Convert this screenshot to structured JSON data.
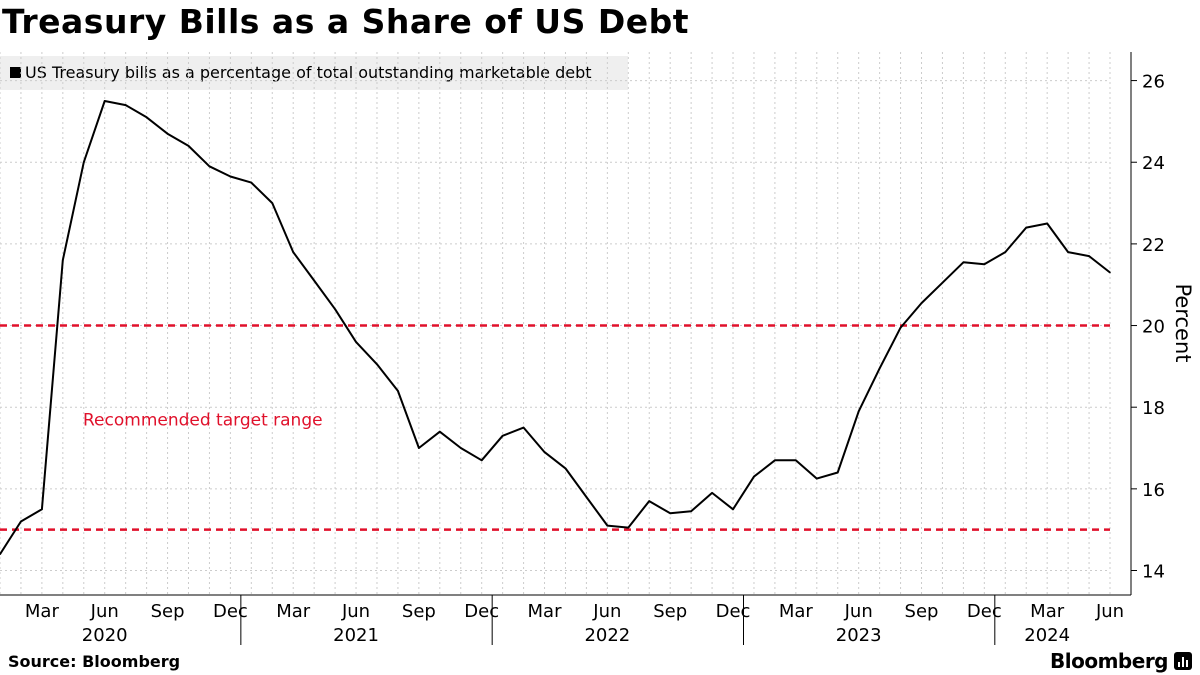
{
  "title": "Treasury Bills as a Share of US Debt",
  "legend": {
    "label": "US Treasury bills as a percentage of total outstanding marketable debt"
  },
  "source": "Source: Bloomberg",
  "brand": "Bloomberg",
  "colors": {
    "line": "#000000",
    "target": "#e0112b",
    "legend_bg": "#efefef",
    "grid": "#cccccc"
  },
  "chart_data": {
    "type": "line",
    "title": "Treasury Bills as a Share of US Debt",
    "ylabel": "Percent",
    "xlabel": "",
    "ylim": [
      13.4,
      26.7
    ],
    "yticks": [
      14,
      16,
      18,
      20,
      22,
      24,
      26
    ],
    "x_start": "2020-01",
    "x_end": "2024-06",
    "x_ticks": [
      {
        "month": "2020-03",
        "label": "Mar"
      },
      {
        "month": "2020-06",
        "label": "Jun"
      },
      {
        "month": "2020-09",
        "label": "Sep"
      },
      {
        "month": "2020-12",
        "label": "Dec"
      },
      {
        "month": "2021-03",
        "label": "Mar"
      },
      {
        "month": "2021-06",
        "label": "Jun"
      },
      {
        "month": "2021-09",
        "label": "Sep"
      },
      {
        "month": "2021-12",
        "label": "Dec"
      },
      {
        "month": "2022-03",
        "label": "Mar"
      },
      {
        "month": "2022-06",
        "label": "Jun"
      },
      {
        "month": "2022-09",
        "label": "Sep"
      },
      {
        "month": "2022-12",
        "label": "Dec"
      },
      {
        "month": "2023-03",
        "label": "Mar"
      },
      {
        "month": "2023-06",
        "label": "Jun"
      },
      {
        "month": "2023-09",
        "label": "Sep"
      },
      {
        "month": "2023-12",
        "label": "Dec"
      },
      {
        "month": "2024-03",
        "label": "Mar"
      },
      {
        "month": "2024-06",
        "label": "Jun"
      }
    ],
    "year_labels": [
      {
        "month": "2020-06",
        "label": "2020"
      },
      {
        "month": "2021-06",
        "label": "2021"
      },
      {
        "month": "2022-06",
        "label": "2022"
      },
      {
        "month": "2023-06",
        "label": "2023"
      },
      {
        "month": "2024-03",
        "label": "2024"
      }
    ],
    "series": [
      {
        "name": "US Treasury bills as a percentage of total outstanding marketable debt",
        "x": [
          "2020-01",
          "2020-02",
          "2020-03",
          "2020-04",
          "2020-05",
          "2020-06",
          "2020-07",
          "2020-08",
          "2020-09",
          "2020-10",
          "2020-11",
          "2020-12",
          "2021-01",
          "2021-02",
          "2021-03",
          "2021-04",
          "2021-05",
          "2021-06",
          "2021-07",
          "2021-08",
          "2021-09",
          "2021-10",
          "2021-11",
          "2021-12",
          "2022-01",
          "2022-02",
          "2022-03",
          "2022-04",
          "2022-05",
          "2022-06",
          "2022-07",
          "2022-08",
          "2022-09",
          "2022-10",
          "2022-11",
          "2022-12",
          "2023-01",
          "2023-02",
          "2023-03",
          "2023-04",
          "2023-05",
          "2023-06",
          "2023-07",
          "2023-08",
          "2023-09",
          "2023-10",
          "2023-11",
          "2023-12",
          "2024-01",
          "2024-02",
          "2024-03",
          "2024-04",
          "2024-05",
          "2024-06"
        ],
        "values": [
          14.4,
          15.2,
          15.5,
          21.6,
          24.0,
          25.5,
          25.4,
          25.1,
          24.7,
          24.4,
          23.9,
          23.65,
          23.5,
          23.0,
          21.8,
          21.1,
          20.4,
          19.6,
          19.05,
          18.4,
          17.0,
          17.4,
          17.0,
          16.7,
          17.3,
          17.5,
          16.9,
          16.5,
          15.8,
          15.1,
          15.05,
          15.7,
          15.4,
          15.45,
          15.9,
          15.5,
          16.3,
          16.7,
          16.7,
          16.25,
          16.4,
          17.9,
          18.95,
          19.95,
          20.55,
          21.05,
          21.55,
          21.5,
          21.8,
          22.4,
          22.5,
          21.8,
          21.7,
          21.3
        ]
      }
    ],
    "reference_lines": [
      {
        "value": 20,
        "style": "dashed"
      },
      {
        "value": 15,
        "style": "dashed"
      }
    ],
    "annotations": [
      {
        "text": "Recommended target range",
        "month": "2020-03",
        "y": 17.7
      }
    ]
  }
}
